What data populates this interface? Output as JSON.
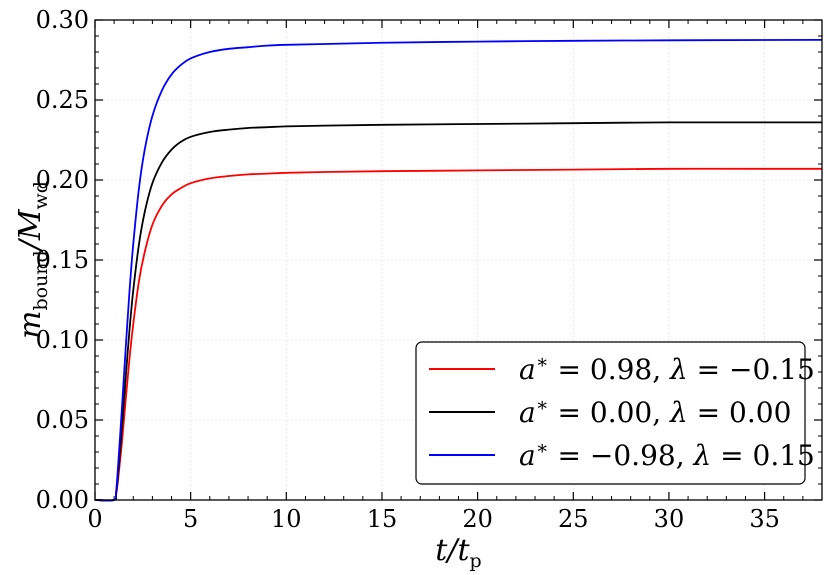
{
  "chart_data": {
    "type": "line",
    "x_label": {
      "var": "t",
      "sub": "p"
    },
    "y_label": {
      "var1": "m",
      "sub1": "bound",
      "var2": "M",
      "sub2": "wd"
    },
    "xlim": [
      0,
      38
    ],
    "ylim": [
      0,
      0.3
    ],
    "x_ticks": [
      0,
      5,
      10,
      15,
      20,
      25,
      30,
      35
    ],
    "x_tick_labels": [
      "0",
      "5",
      "10",
      "15",
      "20",
      "25",
      "30",
      "35"
    ],
    "y_ticks": [
      0,
      0.05,
      0.1,
      0.15,
      0.2,
      0.25,
      0.3
    ],
    "y_tick_labels": [
      "0.00",
      "0.05",
      "0.10",
      "0.15",
      "0.20",
      "0.25",
      "0.30"
    ],
    "grid": true,
    "legend_position": "bottom-right",
    "series": [
      {
        "legend": {
          "a": "0.98",
          "lambda": "−0.15"
        },
        "color": "#ff0000",
        "x": [
          0,
          1.0,
          1.1,
          1.2,
          1.4,
          1.6,
          1.8,
          2.0,
          2.3,
          2.6,
          3.0,
          3.5,
          4.0,
          4.5,
          5.0,
          6.0,
          7.0,
          8.0,
          9.0,
          10,
          12,
          15,
          20,
          25,
          30,
          35,
          38
        ],
        "y": [
          0,
          0,
          0.003,
          0.012,
          0.035,
          0.062,
          0.088,
          0.11,
          0.137,
          0.155,
          0.172,
          0.184,
          0.191,
          0.195,
          0.198,
          0.201,
          0.2025,
          0.2035,
          0.204,
          0.2045,
          0.205,
          0.2055,
          0.206,
          0.2065,
          0.207,
          0.207,
          0.207
        ]
      },
      {
        "legend": {
          "a": "0.00",
          "lambda": "0.00"
        },
        "color": "#000000",
        "x": [
          0,
          1.0,
          1.1,
          1.2,
          1.4,
          1.6,
          1.8,
          2.0,
          2.3,
          2.6,
          3.0,
          3.5,
          4.0,
          4.5,
          5.0,
          6.0,
          7.0,
          8.0,
          9.0,
          10,
          12,
          15,
          20,
          25,
          30,
          35,
          38
        ],
        "y": [
          0,
          0,
          0.004,
          0.015,
          0.044,
          0.076,
          0.106,
          0.131,
          0.16,
          0.18,
          0.198,
          0.211,
          0.219,
          0.224,
          0.227,
          0.23,
          0.2315,
          0.2325,
          0.233,
          0.2335,
          0.234,
          0.2345,
          0.235,
          0.2355,
          0.236,
          0.236,
          0.236
        ]
      },
      {
        "legend": {
          "a": "−0.98",
          "lambda": "0.15"
        },
        "color": "#0000ff",
        "x": [
          0,
          1.0,
          1.1,
          1.2,
          1.4,
          1.6,
          1.8,
          2.0,
          2.3,
          2.6,
          3.0,
          3.5,
          4.0,
          4.5,
          5.0,
          6.0,
          7.0,
          8.0,
          9.0,
          10,
          12,
          15,
          20,
          25,
          30,
          35,
          38
        ],
        "y": [
          0,
          0,
          0.005,
          0.02,
          0.056,
          0.094,
          0.13,
          0.16,
          0.195,
          0.219,
          0.24,
          0.256,
          0.266,
          0.272,
          0.276,
          0.28,
          0.282,
          0.283,
          0.284,
          0.2845,
          0.285,
          0.2858,
          0.2865,
          0.287,
          0.2873,
          0.2875,
          0.2876
        ]
      }
    ]
  }
}
